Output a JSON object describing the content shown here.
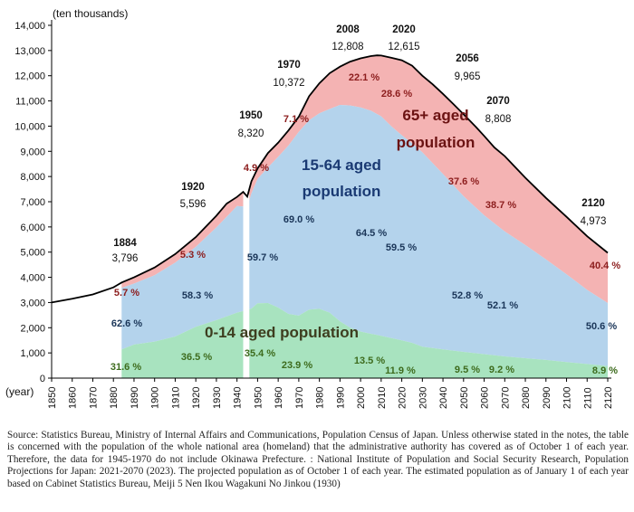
{
  "chart_data": {
    "type": "area",
    "unit_label": "(ten thousands)",
    "axis_title_x": "(year)",
    "ylim": [
      0,
      14000
    ],
    "xlim": [
      1850,
      2120
    ],
    "y_ticks": [
      "0",
      "1,000",
      "2,000",
      "3,000",
      "4,000",
      "5,000",
      "6,000",
      "7,000",
      "8,000",
      "9,000",
      "10,000",
      "11,000",
      "12,000",
      "13,000",
      "14,000"
    ],
    "x_ticks": [
      "1850",
      "1860",
      "1870",
      "1880",
      "1890",
      "1900",
      "1910",
      "1920",
      "1930",
      "1940",
      "1950",
      "1960",
      "1970",
      "1980",
      "1990",
      "2000",
      "2010",
      "2020",
      "2030",
      "2040",
      "2050",
      "2060",
      "2070",
      "2080",
      "2090",
      "2100",
      "2110",
      "2120"
    ],
    "colors": {
      "aged_14": "#a8e3bf",
      "aged_15_64": "#b4d3ec",
      "aged_65": "#f4b3b3",
      "pct_green": "#3d6b1d",
      "pct_blue": "#1a3558",
      "pct_red": "#8c1d1d",
      "line": "#000000"
    },
    "total": [
      [
        1850,
        3000
      ],
      [
        1860,
        3150
      ],
      [
        1870,
        3320
      ],
      [
        1880,
        3600
      ],
      [
        1884,
        3796
      ],
      [
        1890,
        4000
      ],
      [
        1900,
        4390
      ],
      [
        1910,
        4920
      ],
      [
        1920,
        5596
      ],
      [
        1930,
        6445
      ],
      [
        1935,
        6925
      ],
      [
        1940,
        7190
      ],
      [
        1943,
        7390
      ],
      [
        1945,
        7200
      ],
      [
        1947,
        7810
      ],
      [
        1950,
        8320
      ],
      [
        1955,
        8930
      ],
      [
        1960,
        9340
      ],
      [
        1965,
        9830
      ],
      [
        1970,
        10372
      ],
      [
        1975,
        11190
      ],
      [
        1980,
        11700
      ],
      [
        1985,
        12100
      ],
      [
        1990,
        12360
      ],
      [
        1995,
        12560
      ],
      [
        2000,
        12690
      ],
      [
        2005,
        12780
      ],
      [
        2008,
        12808
      ],
      [
        2010,
        12800
      ],
      [
        2015,
        12710
      ],
      [
        2020,
        12615
      ],
      [
        2025,
        12400
      ],
      [
        2030,
        12000
      ],
      [
        2035,
        11660
      ],
      [
        2040,
        11280
      ],
      [
        2045,
        10880
      ],
      [
        2050,
        10470
      ],
      [
        2056,
        9965
      ],
      [
        2060,
        9610
      ],
      [
        2065,
        9150
      ],
      [
        2070,
        8808
      ],
      [
        2080,
        7950
      ],
      [
        2090,
        7150
      ],
      [
        2100,
        6400
      ],
      [
        2110,
        5630
      ],
      [
        2120,
        4973
      ]
    ],
    "under15": [
      [
        1884,
        1140
      ],
      [
        1890,
        1330
      ],
      [
        1900,
        1450
      ],
      [
        1910,
        1650
      ],
      [
        1920,
        2040
      ],
      [
        1930,
        2300
      ],
      [
        1940,
        2600
      ],
      [
        1945,
        2700
      ],
      [
        1947,
        2760
      ],
      [
        1950,
        2970
      ],
      [
        1955,
        2980
      ],
      [
        1960,
        2800
      ],
      [
        1965,
        2550
      ],
      [
        1970,
        2480
      ],
      [
        1975,
        2720
      ],
      [
        1980,
        2750
      ],
      [
        1985,
        2600
      ],
      [
        1990,
        2250
      ],
      [
        1995,
        2000
      ],
      [
        2000,
        1850
      ],
      [
        2005,
        1760
      ],
      [
        2010,
        1680
      ],
      [
        2015,
        1590
      ],
      [
        2020,
        1500
      ],
      [
        2025,
        1400
      ],
      [
        2030,
        1250
      ],
      [
        2040,
        1140
      ],
      [
        2050,
        1040
      ],
      [
        2060,
        950
      ],
      [
        2070,
        860
      ],
      [
        2080,
        790
      ],
      [
        2090,
        720
      ],
      [
        2100,
        640
      ],
      [
        2110,
        560
      ],
      [
        2120,
        480
      ]
    ],
    "working": [
      [
        1884,
        3580
      ],
      [
        1890,
        3750
      ],
      [
        1900,
        4080
      ],
      [
        1910,
        4580
      ],
      [
        1920,
        5210
      ],
      [
        1930,
        5980
      ],
      [
        1940,
        6830
      ],
      [
        1945,
        6800
      ],
      [
        1947,
        7330
      ],
      [
        1950,
        7910
      ],
      [
        1955,
        8360
      ],
      [
        1960,
        8780
      ],
      [
        1965,
        9230
      ],
      [
        1970,
        9770
      ],
      [
        1975,
        10230
      ],
      [
        1980,
        10510
      ],
      [
        1985,
        10680
      ],
      [
        1990,
        10840
      ],
      [
        1995,
        10820
      ],
      [
        2000,
        10740
      ],
      [
        2005,
        10610
      ],
      [
        2010,
        10390
      ],
      [
        2015,
        9990
      ],
      [
        2020,
        9640
      ],
      [
        2025,
        9320
      ],
      [
        2030,
        8960
      ],
      [
        2040,
        8100
      ],
      [
        2050,
        7220
      ],
      [
        2060,
        6460
      ],
      [
        2070,
        5820
      ],
      [
        2080,
        5280
      ],
      [
        2090,
        4710
      ],
      [
        2100,
        4120
      ],
      [
        2110,
        3500
      ],
      [
        2120,
        2980
      ]
    ],
    "gap": [
      1943,
      1946
    ],
    "point_labels": [
      {
        "year": "1884",
        "value": "3,796"
      },
      {
        "year": "1920",
        "value": "5,596"
      },
      {
        "year": "1950",
        "value": "8,320"
      },
      {
        "year": "1970",
        "value": "10,372"
      },
      {
        "year": "2008",
        "value": "12,808"
      },
      {
        "year": "2020",
        "value": "12,615"
      },
      {
        "year": "2056",
        "value": "9,965"
      },
      {
        "year": "2070",
        "value": "8,808"
      },
      {
        "year": "2120",
        "value": "4,973"
      }
    ],
    "share_labels": {
      "aged_14": [
        {
          "year": 1884,
          "text": "31.6 %"
        },
        {
          "year": 1920,
          "text": "36.5 %"
        },
        {
          "year": 1950,
          "text": "35.4 %"
        },
        {
          "year": 1970,
          "text": "23.9 %"
        },
        {
          "year": 2008,
          "text": "13.5 %"
        },
        {
          "year": 2020,
          "text": "11.9 %"
        },
        {
          "year": 2056,
          "text": "9.5 %"
        },
        {
          "year": 2070,
          "text": "9.2 %"
        },
        {
          "year": 2120,
          "text": "8.9 %"
        }
      ],
      "aged_15_64": [
        {
          "year": 1884,
          "text": "62.6 %"
        },
        {
          "year": 1920,
          "text": "58.3 %"
        },
        {
          "year": 1950,
          "text": "59.7 %"
        },
        {
          "year": 1970,
          "text": "69.0 %"
        },
        {
          "year": 2008,
          "text": "64.5 %"
        },
        {
          "year": 2020,
          "text": "59.5 %"
        },
        {
          "year": 2056,
          "text": "52.8 %"
        },
        {
          "year": 2070,
          "text": "52.1 %"
        },
        {
          "year": 2120,
          "text": "50.6 %"
        }
      ],
      "aged_65": [
        {
          "year": 1884,
          "text": "5.7 %"
        },
        {
          "year": 1920,
          "text": "5.3 %"
        },
        {
          "year": 1950,
          "text": "4.9 %"
        },
        {
          "year": 1970,
          "text": "7.1 %"
        },
        {
          "year": 2008,
          "text": "22.1 %"
        },
        {
          "year": 2020,
          "text": "28.6 %"
        },
        {
          "year": 2056,
          "text": "37.6 %"
        },
        {
          "year": 2070,
          "text": "38.7 %"
        },
        {
          "year": 2120,
          "text": "40.4 %"
        }
      ]
    },
    "band_labels": {
      "aged_14": "0-14 aged population",
      "aged_15_64_line1": "15-64 aged",
      "aged_15_64_line2": "population",
      "aged_65_line1": "65+ aged",
      "aged_65_line2": "population"
    }
  },
  "source_note": "Source: Statistics Bureau, Ministry of Internal Affairs and Communications, Population Census of Japan. Unless otherwise stated in the notes, the table is concerned with the population of the whole national area (homeland) that the administrative authority has covered as of October 1 of each year. Therefore, the data for 1945-1970 do not include Okinawa Prefecture. : National Institute of Population and Social Security Research, Population Projections for Japan: 2021-2070 (2023). The projected population as of October 1 of each year. The estimated population as of January 1 of each year based on Cabinet Statistics Bureau, Meiji 5 Nen Ikou Wagakuni No Jinkou (1930)"
}
